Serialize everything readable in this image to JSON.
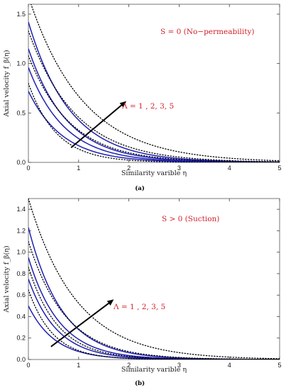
{
  "chart_data": [
    {
      "type": "line",
      "panel_label": "(a)",
      "xlabel": "Similarity varible η",
      "ylabel": "Axial velocity f_β(η)",
      "xlim": [
        0,
        5
      ],
      "ylim": [
        0,
        1.6
      ],
      "x_ticks": [
        "0",
        "1",
        "2",
        "3",
        "4",
        "5"
      ],
      "y_ticks": [
        "0.0",
        "0.5",
        "1.0",
        "1.5"
      ],
      "annotations": [
        "S = 0 (No−permeability)",
        "Λ = 1 , 2,  3, 5"
      ],
      "arrow_data": {
        "from": [
          0.85,
          0.15
        ],
        "to": [
          1.95,
          0.62
        ]
      },
      "series": [
        {
          "style": "solid",
          "color": "#1f1fb4",
          "y0": 0.72,
          "decay": 1.45
        },
        {
          "style": "solid",
          "color": "#1f1fb4",
          "y0": 0.96,
          "decay": 1.38
        },
        {
          "style": "solid",
          "color": "#1f1fb4",
          "y0": 1.15,
          "decay": 1.3
        },
        {
          "style": "solid",
          "color": "#1f1fb4",
          "y0": 1.42,
          "decay": 1.2
        },
        {
          "style": "dotted",
          "color": "#000000",
          "y0": 0.8,
          "decay": 1.78
        },
        {
          "style": "dotted",
          "color": "#000000",
          "y0": 1.08,
          "decay": 1.2
        },
        {
          "style": "dotted",
          "color": "#000000",
          "y0": 1.33,
          "decay": 1.07
        },
        {
          "style": "dotted",
          "color": "#000000",
          "y0": 1.68,
          "decay": 0.92
        }
      ]
    },
    {
      "type": "line",
      "panel_label": "(b)",
      "xlabel": "Similarity varible η",
      "ylabel": "Axial velocity f_β(η)",
      "xlim": [
        0,
        5
      ],
      "ylim": [
        0,
        1.5
      ],
      "x_ticks": [
        "0",
        "1",
        "2",
        "3",
        "4",
        "5"
      ],
      "y_ticks": [
        "0.0",
        "0.2",
        "0.4",
        "0.6",
        "0.8",
        "1.0",
        "1.2",
        "1.4"
      ],
      "annotations": [
        "S > 0 (Suction)",
        "Λ = 1 , 2,  3, 5"
      ],
      "arrow_data": {
        "from": [
          0.45,
          0.12
        ],
        "to": [
          1.7,
          0.56
        ]
      },
      "series": [
        {
          "style": "solid",
          "color": "#1f1fb4",
          "y0": 0.5,
          "decay": 1.9
        },
        {
          "style": "solid",
          "color": "#1f1fb4",
          "y0": 0.75,
          "decay": 1.75
        },
        {
          "style": "solid",
          "color": "#1f1fb4",
          "y0": 0.95,
          "decay": 1.62
        },
        {
          "style": "solid",
          "color": "#1f1fb4",
          "y0": 1.23,
          "decay": 1.48
        },
        {
          "style": "dotted",
          "color": "#000000",
          "y0": 0.65,
          "decay": 2.05
        },
        {
          "style": "dotted",
          "color": "#000000",
          "y0": 0.86,
          "decay": 1.7
        },
        {
          "style": "dotted",
          "color": "#000000",
          "y0": 1.1,
          "decay": 1.35
        },
        {
          "style": "dotted",
          "color": "#000000",
          "y0": 1.5,
          "decay": 1.05
        }
      ]
    }
  ]
}
